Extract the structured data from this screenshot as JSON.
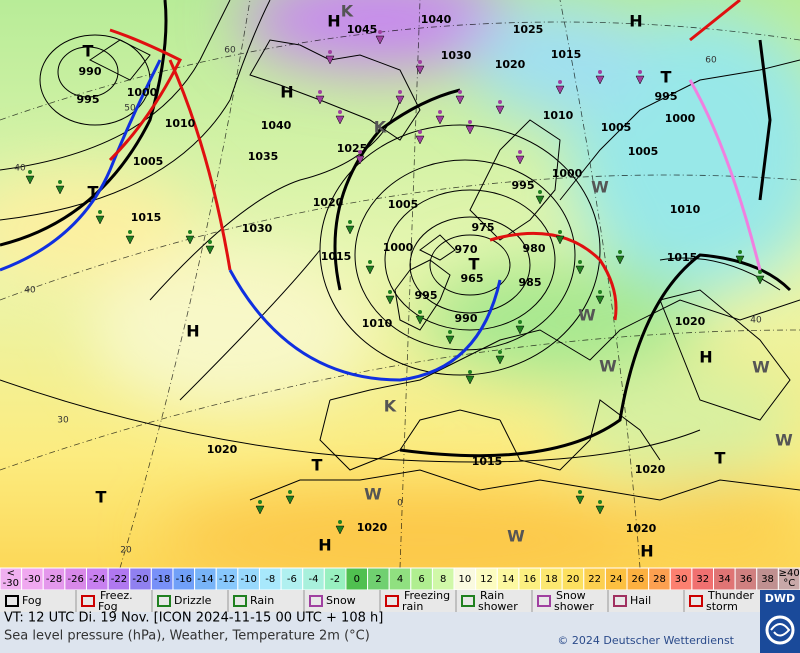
{
  "map": {
    "isobar_labels": [
      "1045",
      "1040",
      "1030",
      "1025",
      "1020",
      "1015",
      "1010",
      "1005",
      "1005",
      "1000",
      "995",
      "990",
      "995",
      "1000",
      "1010",
      "1005",
      "1015",
      "1040",
      "1035",
      "1025",
      "1020",
      "1005",
      "1000",
      "1015",
      "975",
      "970",
      "965",
      "980",
      "985",
      "995",
      "990",
      "1010",
      "1030",
      "1020",
      "1015",
      "1020",
      "1020",
      "1020",
      "1015",
      "1010",
      "1020",
      "995",
      "1000"
    ],
    "temperature_labels": [
      "60",
      "50",
      "40",
      "30",
      "20",
      "0",
      "40",
      "60",
      "40"
    ],
    "pressure_systems": [
      "H",
      "H",
      "H",
      "H",
      "H",
      "H",
      "H",
      "T",
      "T",
      "T",
      "T",
      "T",
      "T",
      "T",
      "K",
      "K",
      "K",
      "W",
      "W",
      "W",
      "W",
      "W",
      "W",
      "W"
    ]
  },
  "temperature_scale": {
    "low_label": [
      "<",
      "-30"
    ],
    "high_label": [
      "≥40",
      "°C"
    ],
    "steps": [
      -30,
      -28,
      -26,
      -24,
      -22,
      -20,
      -18,
      -16,
      -14,
      -12,
      -10,
      -8,
      -6,
      -4,
      -2,
      0,
      2,
      4,
      6,
      8,
      10,
      12,
      14,
      16,
      18,
      20,
      22,
      24,
      26,
      28,
      30,
      32,
      34,
      36,
      38
    ],
    "colors": [
      "#f0a8f0",
      "#e498ec",
      "#d888e8",
      "#c880f0",
      "#b078f0",
      "#9080f0",
      "#7890f8",
      "#70a0f8",
      "#78b4f8",
      "#88c8fc",
      "#98d8fc",
      "#a8e8fc",
      "#b0f0f0",
      "#a8f0dc",
      "#98f0c0",
      "#50c050",
      "#70d070",
      "#90e080",
      "#b0ee90",
      "#d0f8a8",
      "#fafae0",
      "#fcfcc0",
      "#fcf8a0",
      "#fcf080",
      "#fce870",
      "#fce060",
      "#fcd050",
      "#fcc040",
      "#fcb040",
      "#fca050",
      "#fc8070",
      "#f07070",
      "#e07474",
      "#d08080",
      "#c09090"
    ],
    "low_color": "#f0b0f0",
    "high_color": "#c8a8a8"
  },
  "weather_legend": [
    "Fog",
    "Freez. Fog",
    "Drizzle",
    "Rain",
    "Snow",
    "Freezing rain",
    "Rain shower",
    "Snow shower",
    "Hail",
    "Thunder storm"
  ],
  "footer": {
    "valid_time": "VT: 12 UTC Di.  19 Nov. [ICON 2024-11-15  00 UTC + 108 h]",
    "description": "Sea level pressure (hPa), Weather, Temperature 2m (°C)",
    "copyright": "© 2024 Deutscher Wetterdienst",
    "logo": "DWD"
  }
}
